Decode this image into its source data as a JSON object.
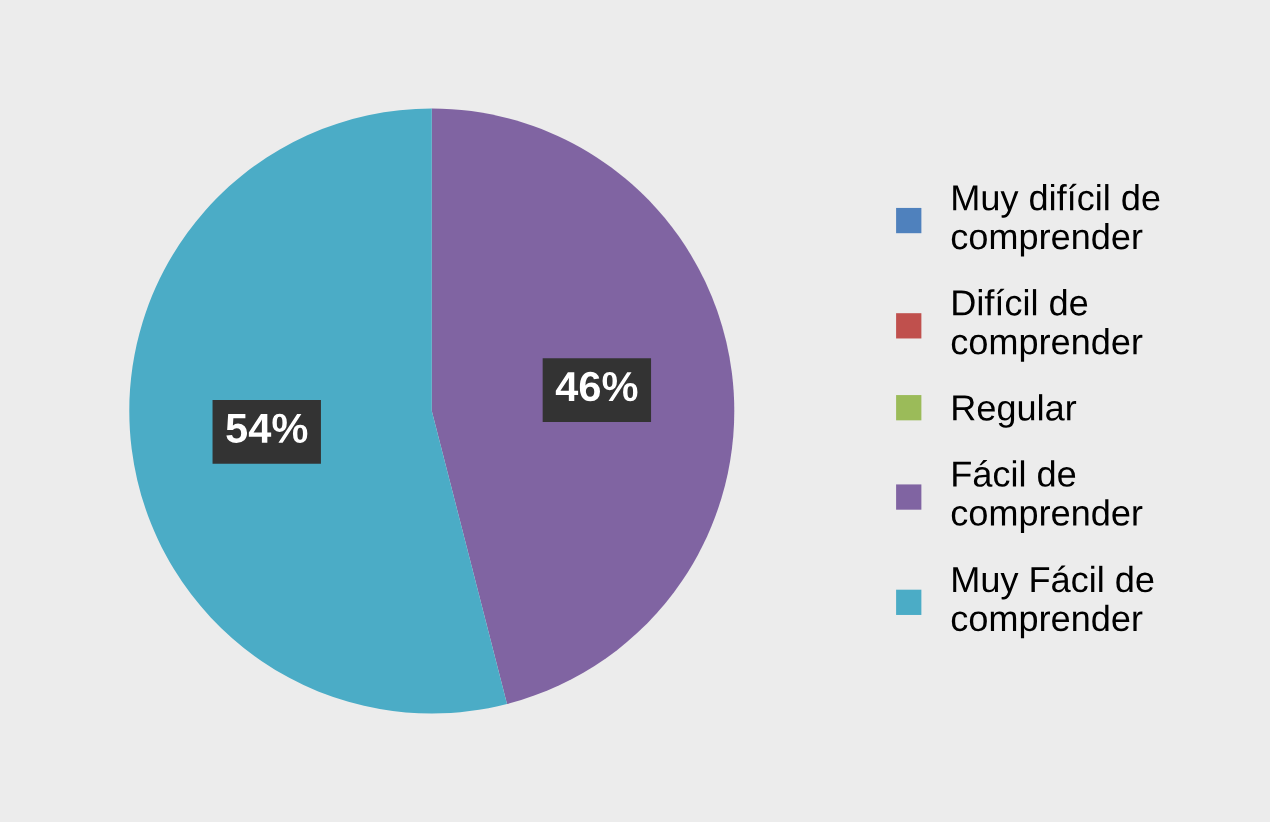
{
  "chart_data": {
    "type": "pie",
    "categories": [
      "Muy difícil de comprender",
      "Difícil de comprender",
      "Regular",
      "Fácil de comprender",
      "Muy Fácil de comprender"
    ],
    "values": [
      0,
      0,
      0,
      46,
      54
    ],
    "colors": [
      "#4f81bd",
      "#c0504d",
      "#9bbb59",
      "#8064a2",
      "#4bacc6"
    ],
    "value_labels": [
      null,
      null,
      null,
      "46%",
      "54%"
    ],
    "legend": "right"
  }
}
